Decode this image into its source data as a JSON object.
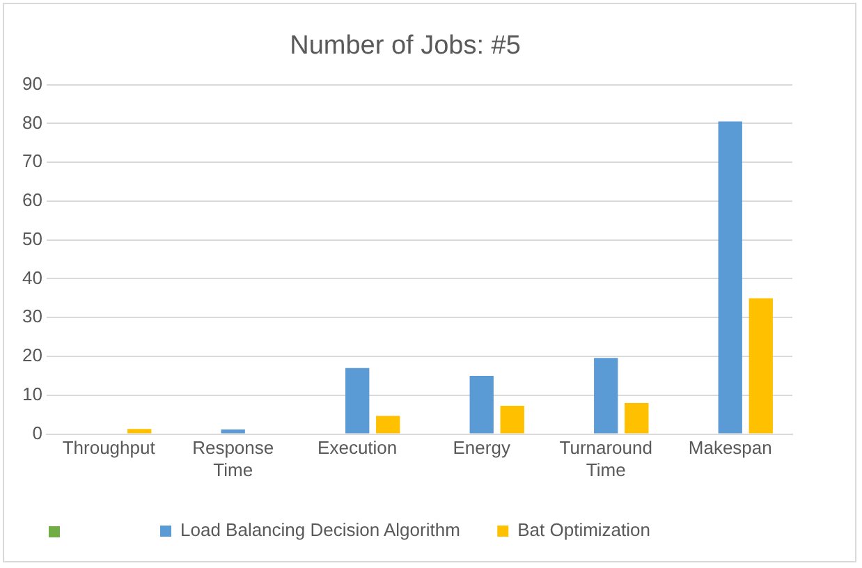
{
  "chart_data": {
    "type": "bar",
    "title": "Number of Jobs: #5",
    "categories": [
      "Throughput",
      "Response Time",
      "Execution",
      "Energy",
      "Turnaround Time",
      "Makespan"
    ],
    "series": [
      {
        "color": "#70ad47",
        "values": [
          null,
          null,
          null,
          null,
          null,
          null
        ]
      },
      {
        "name": "Load Balancing Decision Algorithm",
        "color": "#5b9bd5",
        "values": [
          0,
          1.2,
          17,
          15,
          19.6,
          80.5
        ]
      },
      {
        "name": "Bat Optimization",
        "color": "#ffc000",
        "values": [
          1.3,
          0,
          4.7,
          7.3,
          8,
          35
        ]
      }
    ],
    "ylim": [
      0,
      90
    ],
    "yticks": [
      0,
      10,
      20,
      30,
      40,
      50,
      60,
      70,
      80,
      90
    ],
    "grid": "y",
    "legend": "bottom"
  }
}
